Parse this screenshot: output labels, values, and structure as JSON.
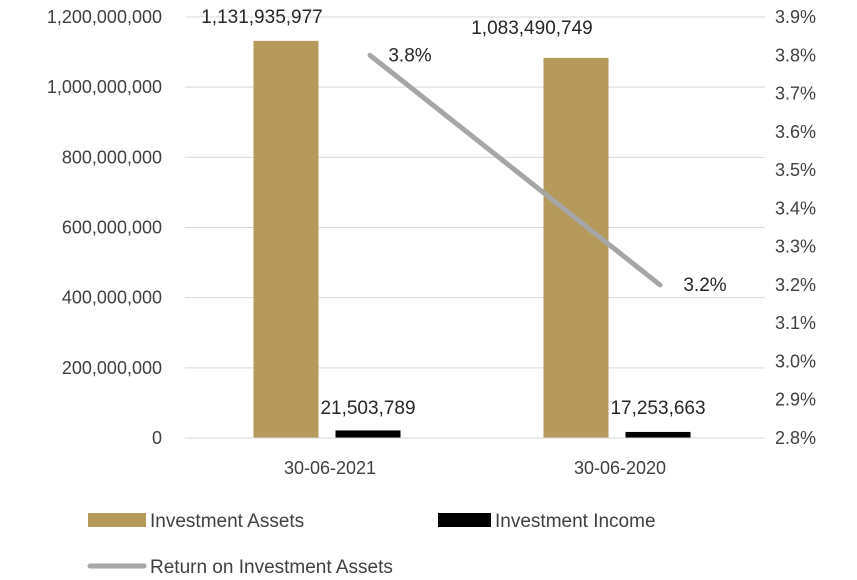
{
  "chart_data": {
    "type": "bar",
    "categories": [
      "30-06-2021",
      "30-06-2020"
    ],
    "series": [
      {
        "name": "Investment Assets",
        "kind": "bar",
        "axis": "left",
        "color": "#B59A5B",
        "values": [
          1131935977,
          1083490749
        ],
        "labels": [
          "1,131,935,977",
          "1,083,490,749"
        ]
      },
      {
        "name": "Investment Income",
        "kind": "bar",
        "axis": "left",
        "color": "#000000",
        "values": [
          21503789,
          17253663
        ],
        "labels": [
          "21,503,789",
          "17,253,663"
        ]
      },
      {
        "name": "Return on Investment Assets",
        "kind": "line",
        "axis": "right",
        "color": "#A6A6A6",
        "values": [
          3.8,
          3.2
        ],
        "labels": [
          "3.8%",
          "3.2%"
        ]
      }
    ],
    "left_axis": {
      "ylim": [
        0,
        1200000000
      ],
      "ticks": [
        0,
        200000000,
        400000000,
        600000000,
        800000000,
        1000000000,
        1200000000
      ],
      "tick_labels": [
        "0",
        "200,000,000",
        "400,000,000",
        "600,000,000",
        "800,000,000",
        "1,000,000,000",
        "1,200,000,000"
      ]
    },
    "right_axis": {
      "ylim": [
        2.8,
        3.9
      ],
      "ticks": [
        2.8,
        2.9,
        3.0,
        3.1,
        3.2,
        3.3,
        3.4,
        3.5,
        3.6,
        3.7,
        3.8,
        3.9
      ],
      "tick_labels": [
        "2.8%",
        "2.9%",
        "3.0%",
        "3.1%",
        "3.2%",
        "3.3%",
        "3.4%",
        "3.5%",
        "3.6%",
        "3.7%",
        "3.8%",
        "3.9%"
      ]
    },
    "grid": true,
    "legend_position": "bottom-left"
  }
}
